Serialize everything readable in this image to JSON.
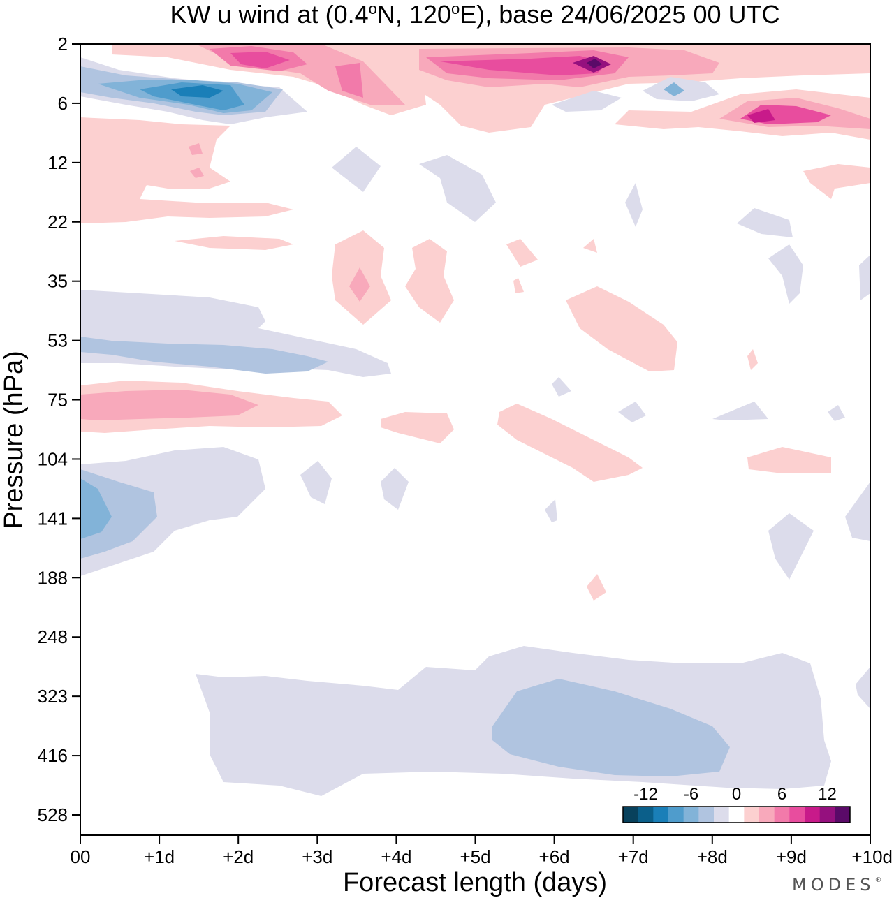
{
  "chart_data": {
    "type": "heatmap",
    "title_prefix": "KW u wind at (0.4",
    "title_deg1": "o",
    "title_mid": "N, 120",
    "title_deg2": "o",
    "title_suffix": "E),  base 24/06/2025  00 UTC",
    "xlabel": "Forecast length (days)",
    "ylabel": "Pressure (hPa)",
    "x_ticks": [
      "00",
      "+1d",
      "+2d",
      "+3d",
      "+4d",
      "+5d",
      "+6d",
      "+7d",
      "+8d",
      "+9d",
      "+10d"
    ],
    "x_range_days": [
      0,
      10
    ],
    "y_ticks": [
      "2",
      "6",
      "12",
      "22",
      "35",
      "53",
      "75",
      "104",
      "141",
      "188",
      "248",
      "323",
      "416",
      "528"
    ],
    "y_scale": "ordinal pressure levels (hPa), top = 2",
    "colorbar": {
      "tick_labels": [
        "-12",
        "-6",
        "0",
        "6",
        "12"
      ],
      "levels": [
        -14,
        -12,
        -10,
        -8,
        -6,
        -4,
        -2,
        0,
        2,
        4,
        6,
        8,
        10,
        12,
        14
      ],
      "colors": [
        "#08415c",
        "#0b5f8a",
        "#1a7fb8",
        "#4f9ccc",
        "#82b3d8",
        "#b0c4e0",
        "#dcdceb",
        "#ffffff",
        "#fcd0d0",
        "#f8a9bb",
        "#f27aaa",
        "#e84d9e",
        "#c81a8a",
        "#95107e",
        "#5a0a68"
      ]
    },
    "brand": "MODES",
    "brand_mark": "®"
  }
}
